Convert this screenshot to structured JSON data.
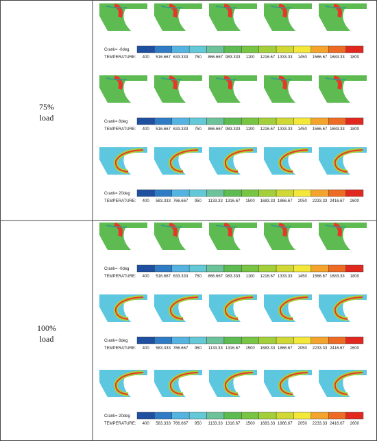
{
  "rows": [
    {
      "label": [
        "75%",
        "load"
      ],
      "groups": [
        {
          "crank": "Crank=  -0deg",
          "quantity": "TEMPERATURE:",
          "ticks": [
            "400",
            "516.667",
            "633.333",
            "750",
            "866.667",
            "983.333",
            "1100",
            "1216.67",
            "1333.33",
            "1450",
            "1566.67",
            "1683.33",
            "1800"
          ]
        },
        {
          "crank": "Crank=   8deg",
          "quantity": "TEMPERATURE:",
          "ticks": [
            "400",
            "516.667",
            "633.333",
            "750",
            "866.667",
            "983.333",
            "1100",
            "1216.67",
            "1333.33",
            "1450",
            "1566.67",
            "1683.33",
            "1800"
          ]
        },
        {
          "crank": "Crank=  20deg",
          "quantity": "TEMPERATURE:",
          "ticks": [
            "400",
            "583.333",
            "766.667",
            "950",
            "1133.33",
            "1316.67",
            "1500",
            "1683.33",
            "1866.67",
            "2050",
            "2233.33",
            "2416.67",
            "2600"
          ]
        }
      ]
    },
    {
      "label": [
        "100%",
        "load"
      ],
      "groups": [
        {
          "crank": "Crank=  -0deg",
          "quantity": "TEMPERATURE:",
          "ticks": [
            "400",
            "516.667",
            "633.333",
            "750",
            "866.667",
            "983.333",
            "1100",
            "1216.67",
            "1333.33",
            "1450",
            "1566.67",
            "1683.33",
            "1800"
          ]
        },
        {
          "crank": "Crank=   8deg",
          "quantity": "TEMPERATURE:",
          "ticks": [
            "400",
            "583.333",
            "766.667",
            "950",
            "1133.33",
            "1316.67",
            "1500",
            "1683.33",
            "1866.67",
            "2050",
            "2233.33",
            "2416.67",
            "2600"
          ]
        },
        {
          "crank": "Crank=  20deg",
          "quantity": "TEMPERATURE:",
          "ticks": [
            "400",
            "583.333",
            "766.667",
            "950",
            "1133.33",
            "1316.67",
            "1500",
            "1683.33",
            "1866.67",
            "2050",
            "2233.33",
            "2416.67",
            "2600"
          ]
        }
      ]
    }
  ]
}
